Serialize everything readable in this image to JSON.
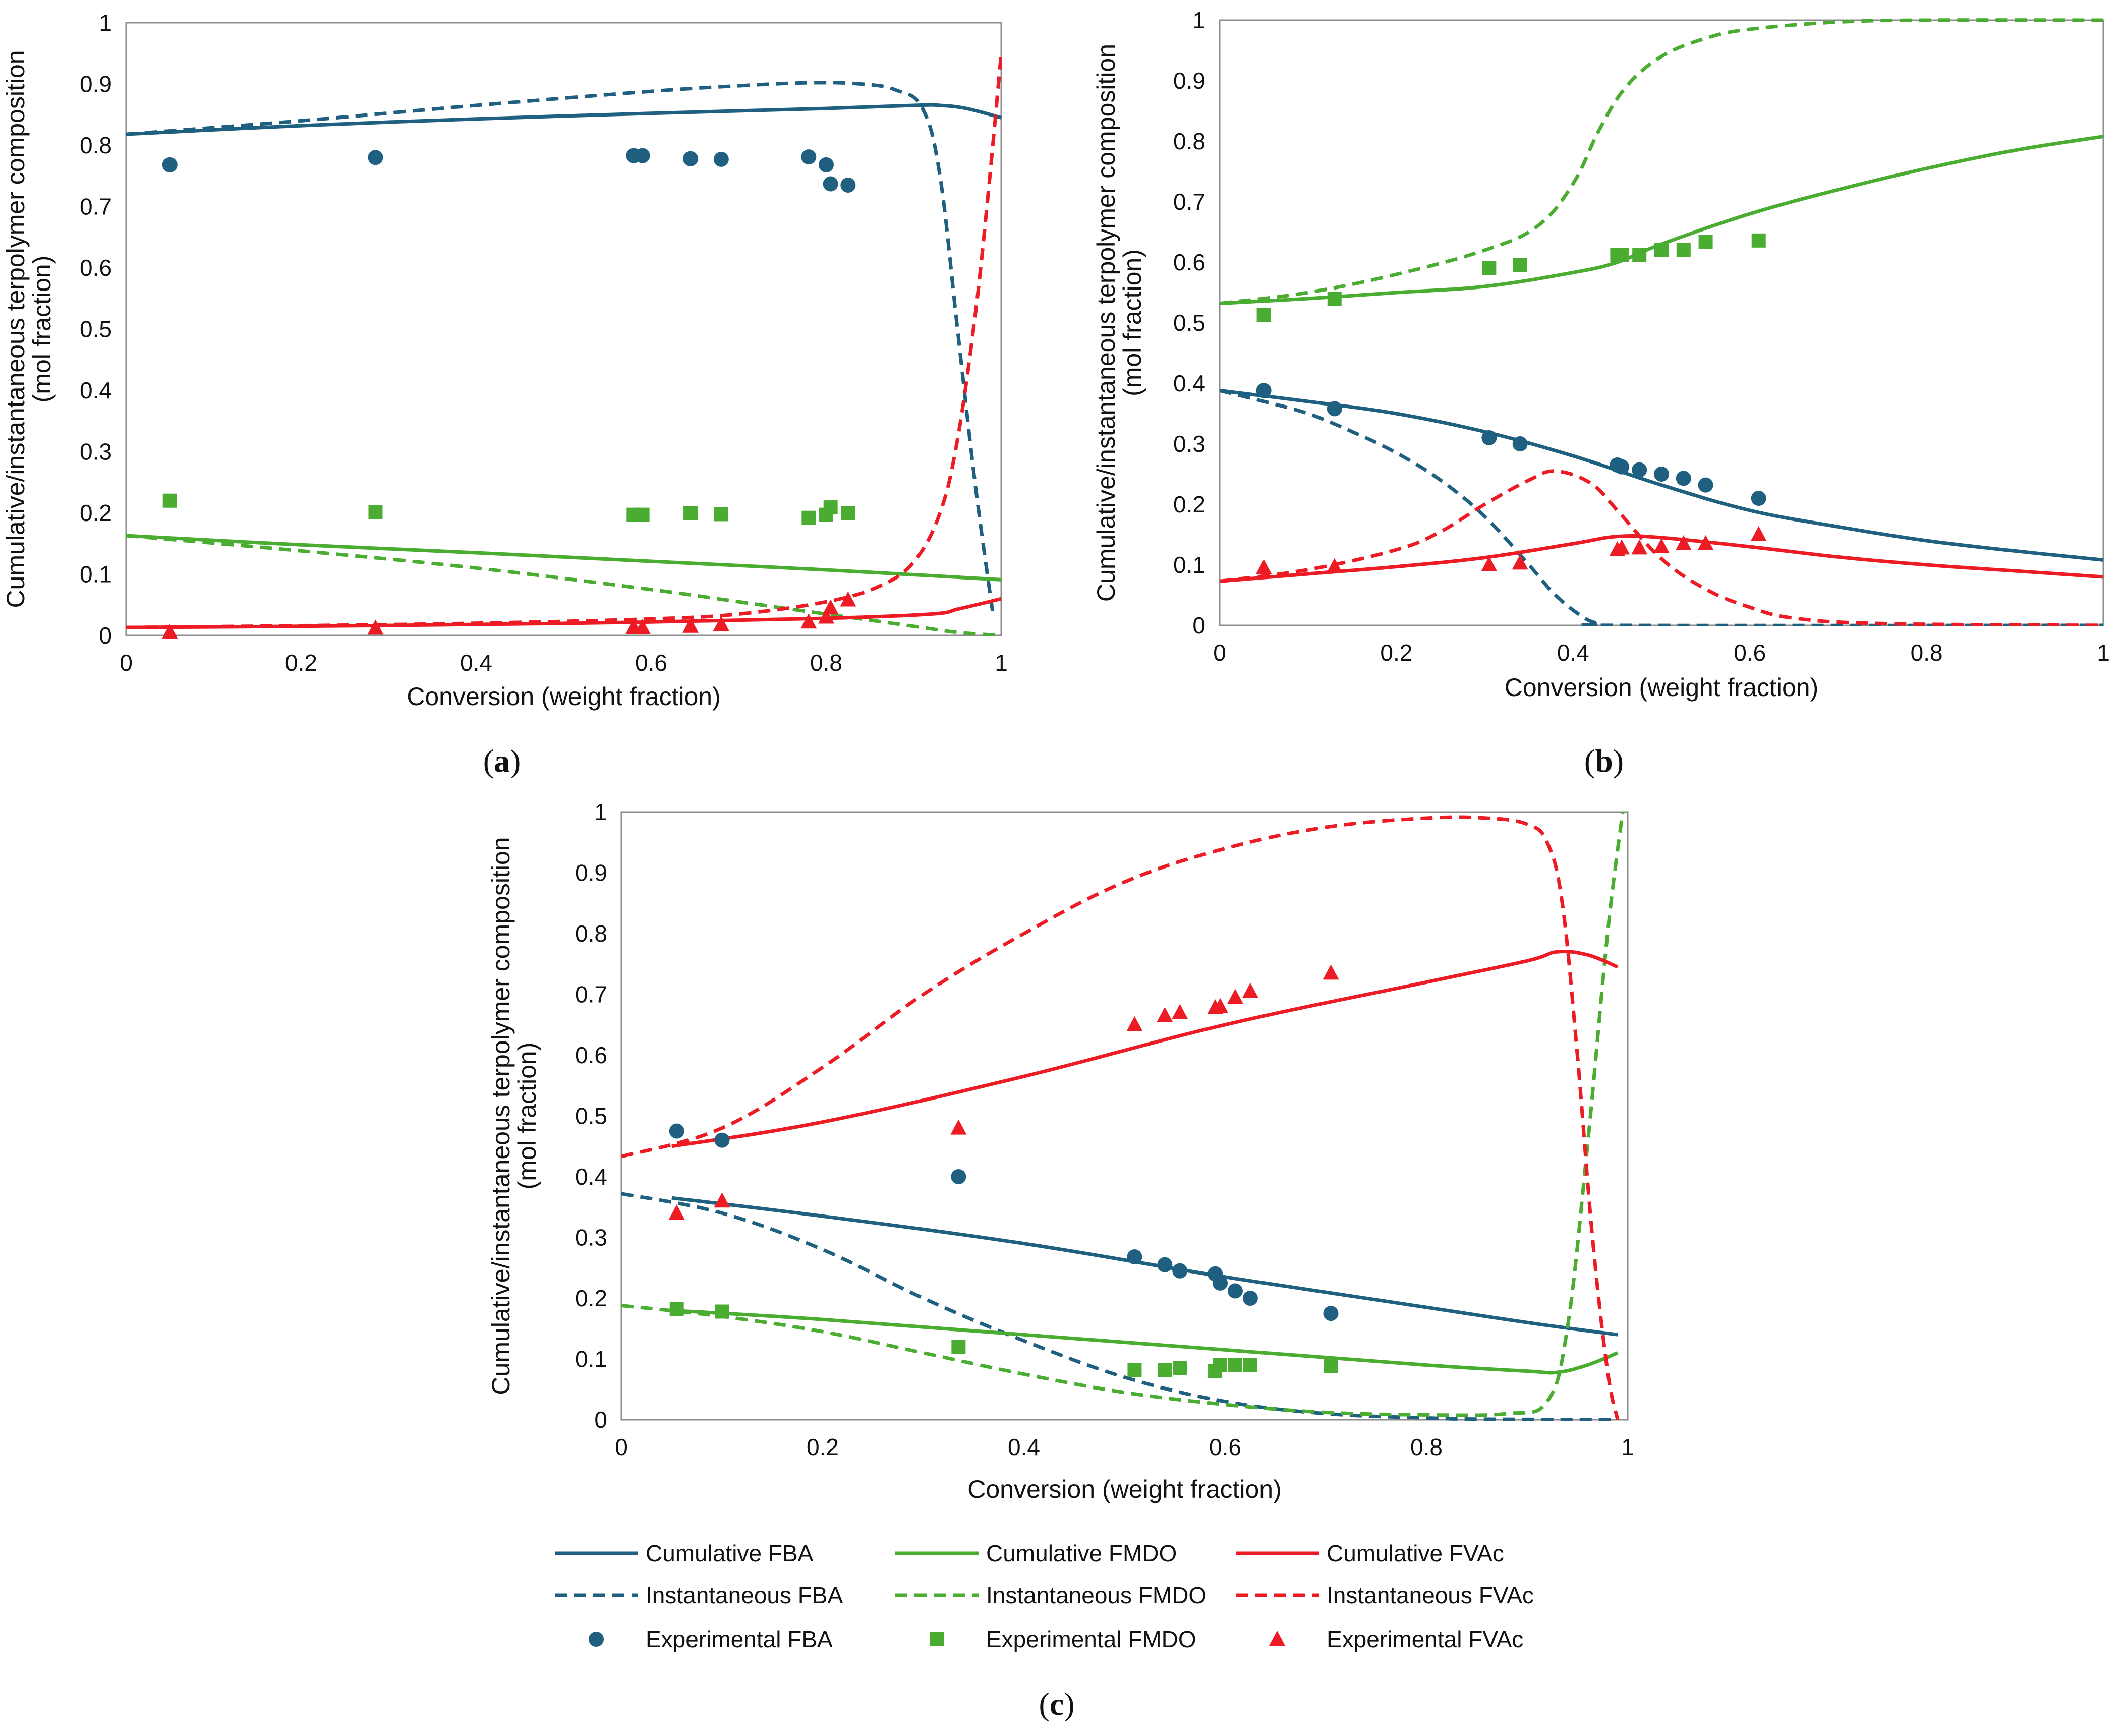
{
  "colors": {
    "FBA": "#1f5f7f",
    "FMDO": "#4aad32",
    "FVAc": "#ed1c24"
  },
  "legend": {
    "cum_fba": "Cumulative FBA",
    "cum_fmdo": "Cumulative FMDO",
    "cum_fvac": "Cumulative FVAc",
    "inst_fba": "Instantaneous FBA",
    "inst_fmdo": "Instantaneous FMDO",
    "inst_fvac": "Instantaneous FVAc",
    "exp_fba": "Experimental FBA",
    "exp_fmdo": "Experimental FMDO",
    "exp_fvac": "Experimental FVAc"
  },
  "chart_data": [
    {
      "id": "a",
      "label_open": "(",
      "label_letter": "a",
      "label_close": ")",
      "type": "line",
      "xlabel": "Conversion (weight fraction)",
      "ylabel_line1": "Cumulative/instantaneous terpolymer composition",
      "ylabel_line2": "(mol fraction)",
      "xlim": [
        0,
        1
      ],
      "ylim": [
        0,
        1
      ],
      "xticks": [
        0,
        0.2,
        0.4,
        0.6,
        0.8,
        1
      ],
      "xtick_labels": [
        "0",
        "0.2",
        "0.4",
        "0.6",
        "0.8",
        "1"
      ],
      "yticks": [
        0,
        0.1,
        0.2,
        0.3,
        0.4,
        0.5,
        0.6,
        0.7,
        0.8,
        0.9,
        1
      ],
      "ytick_labels": [
        "0",
        "0.1",
        "0.2",
        "0.3",
        "0.4",
        "0.5",
        "0.6",
        "0.7",
        "0.8",
        "0.9",
        "1"
      ],
      "series": [
        {
          "key": "cum_fba",
          "name": "Cumulative FBA",
          "component": "FBA",
          "style": "solid",
          "x": [
            0,
            0.2,
            0.4,
            0.6,
            0.8,
            0.9,
            0.93,
            0.96,
            1.0
          ],
          "y": [
            0.818,
            0.832,
            0.843,
            0.852,
            0.86,
            0.865,
            0.865,
            0.86,
            0.845
          ]
        },
        {
          "key": "inst_fba",
          "name": "Instantaneous FBA",
          "component": "FBA",
          "style": "dashed",
          "x": [
            0,
            0.2,
            0.4,
            0.6,
            0.7,
            0.78,
            0.84,
            0.88,
            0.91,
            0.93,
            0.95,
            0.97,
            0.99
          ],
          "y": [
            0.818,
            0.84,
            0.865,
            0.888,
            0.897,
            0.902,
            0.9,
            0.89,
            0.86,
            0.75,
            0.5,
            0.25,
            0.04
          ]
        },
        {
          "key": "cum_fmdo",
          "name": "Cumulative FMDO",
          "component": "FMDO",
          "style": "solid",
          "x": [
            0,
            0.2,
            0.4,
            0.6,
            0.8,
            1.0
          ],
          "y": [
            0.163,
            0.148,
            0.135,
            0.121,
            0.107,
            0.091
          ]
        },
        {
          "key": "inst_fmdo",
          "name": "Instantaneous FMDO",
          "component": "FMDO",
          "style": "dashed",
          "x": [
            0,
            0.2,
            0.4,
            0.6,
            0.7,
            0.8,
            0.9,
            0.95,
            1.0
          ],
          "y": [
            0.163,
            0.138,
            0.11,
            0.075,
            0.055,
            0.035,
            0.015,
            0.005,
            0
          ]
        },
        {
          "key": "cum_fvac",
          "name": "Cumulative FVAc",
          "component": "FVAc",
          "style": "solid",
          "x": [
            0,
            0.2,
            0.4,
            0.6,
            0.8,
            0.92,
            0.95,
            0.98,
            1.0
          ],
          "y": [
            0.013,
            0.015,
            0.018,
            0.022,
            0.028,
            0.035,
            0.043,
            0.053,
            0.06
          ]
        },
        {
          "key": "inst_fvac",
          "name": "Instantaneous FVAc",
          "component": "FVAc",
          "style": "dashed",
          "x": [
            0,
            0.2,
            0.4,
            0.6,
            0.7,
            0.8,
            0.86,
            0.9,
            0.93,
            0.95,
            0.97,
            0.985,
            1.0
          ],
          "y": [
            0.013,
            0.016,
            0.02,
            0.027,
            0.035,
            0.055,
            0.08,
            0.12,
            0.2,
            0.32,
            0.52,
            0.72,
            0.95
          ]
        }
      ],
      "scatter": [
        {
          "key": "exp_fba",
          "name": "Experimental FBA",
          "component": "FBA",
          "marker": "circle",
          "x": [
            0.05,
            0.285,
            0.58,
            0.59,
            0.645,
            0.68,
            0.78,
            0.8,
            0.805,
            0.825
          ],
          "y": [
            0.768,
            0.78,
            0.783,
            0.783,
            0.778,
            0.777,
            0.781,
            0.768,
            0.737,
            0.735
          ]
        },
        {
          "key": "exp_fmdo",
          "name": "Experimental FMDO",
          "component": "FMDO",
          "marker": "square",
          "x": [
            0.05,
            0.285,
            0.58,
            0.59,
            0.645,
            0.68,
            0.78,
            0.8,
            0.805,
            0.825
          ],
          "y": [
            0.22,
            0.201,
            0.197,
            0.197,
            0.2,
            0.198,
            0.192,
            0.197,
            0.209,
            0.2
          ]
        },
        {
          "key": "exp_fvac",
          "name": "Experimental FVAc",
          "component": "FVAc",
          "marker": "triangle",
          "x": [
            0.05,
            0.285,
            0.58,
            0.59,
            0.645,
            0.68,
            0.78,
            0.8,
            0.805,
            0.825
          ],
          "y": [
            0.005,
            0.012,
            0.013,
            0.013,
            0.015,
            0.018,
            0.022,
            0.03,
            0.045,
            0.058
          ]
        }
      ]
    },
    {
      "id": "b",
      "label_open": "(",
      "label_letter": "b",
      "label_close": ")",
      "type": "line",
      "xlabel": "Conversion (weight fraction)",
      "ylabel_line1": "Cumulative/instantaneous terpolymer composition",
      "ylabel_line2": "(mol fraction)",
      "xlim": [
        0,
        1
      ],
      "ylim": [
        0,
        1
      ],
      "xticks": [
        0,
        0.2,
        0.4,
        0.6,
        0.8,
        1
      ],
      "xtick_labels": [
        "0",
        "0.2",
        "0.4",
        "0.6",
        "0.8",
        "1"
      ],
      "yticks": [
        0,
        0.1,
        0.2,
        0.3,
        0.4,
        0.5,
        0.6,
        0.7,
        0.8,
        0.9,
        1
      ],
      "ytick_labels": [
        "0",
        "0.1",
        "0.2",
        "0.3",
        "0.4",
        "0.5",
        "0.6",
        "0.7",
        "0.8",
        "0.9",
        "1"
      ],
      "series": [
        {
          "key": "cum_fba",
          "name": "Cumulative FBA",
          "component": "FBA",
          "style": "solid",
          "x": [
            0,
            0.1,
            0.2,
            0.3,
            0.4,
            0.5,
            0.6,
            0.7,
            0.8,
            0.9,
            1.0
          ],
          "y": [
            0.388,
            0.37,
            0.35,
            0.32,
            0.28,
            0.232,
            0.19,
            0.163,
            0.14,
            0.123,
            0.108
          ]
        },
        {
          "key": "inst_fba",
          "name": "Instantaneous FBA",
          "component": "FBA",
          "style": "dashed",
          "x": [
            0,
            0.05,
            0.1,
            0.15,
            0.2,
            0.25,
            0.3,
            0.35,
            0.38,
            0.41,
            0.43,
            0.46,
            1.0
          ],
          "y": [
            0.388,
            0.37,
            0.35,
            0.32,
            0.285,
            0.24,
            0.18,
            0.1,
            0.05,
            0.015,
            0.003,
            0,
            0
          ]
        },
        {
          "key": "cum_fmdo",
          "name": "Cumulative FMDO",
          "component": "FMDO",
          "style": "solid",
          "x": [
            0,
            0.1,
            0.2,
            0.3,
            0.4,
            0.45,
            0.5,
            0.6,
            0.7,
            0.8,
            0.9,
            1.0
          ],
          "y": [
            0.532,
            0.54,
            0.55,
            0.56,
            0.583,
            0.6,
            0.63,
            0.68,
            0.72,
            0.755,
            0.785,
            0.808
          ]
        },
        {
          "key": "inst_fmdo",
          "name": "Instantaneous FMDO",
          "component": "FMDO",
          "style": "dashed",
          "x": [
            0,
            0.1,
            0.2,
            0.3,
            0.36,
            0.4,
            0.43,
            0.46,
            0.5,
            0.55,
            0.6,
            0.7,
            0.8,
            1.0
          ],
          "y": [
            0.532,
            0.55,
            0.58,
            0.62,
            0.66,
            0.73,
            0.82,
            0.89,
            0.94,
            0.97,
            0.985,
            0.997,
            1.0,
            1.0
          ]
        },
        {
          "key": "cum_fvac",
          "name": "Cumulative FVAc",
          "component": "FVAc",
          "style": "solid",
          "x": [
            0,
            0.1,
            0.2,
            0.3,
            0.4,
            0.45,
            0.5,
            0.6,
            0.7,
            0.8,
            0.9,
            1.0
          ],
          "y": [
            0.073,
            0.085,
            0.097,
            0.112,
            0.135,
            0.147,
            0.145,
            0.13,
            0.113,
            0.1,
            0.09,
            0.08
          ]
        },
        {
          "key": "inst_fvac",
          "name": "Instantaneous FVAc",
          "component": "FVAc",
          "style": "dashed",
          "x": [
            0,
            0.1,
            0.2,
            0.25,
            0.3,
            0.35,
            0.38,
            0.42,
            0.45,
            0.5,
            0.55,
            0.6,
            0.65,
            0.75,
            1.0
          ],
          "y": [
            0.073,
            0.092,
            0.125,
            0.155,
            0.2,
            0.24,
            0.255,
            0.235,
            0.19,
            0.11,
            0.06,
            0.03,
            0.012,
            0.003,
            0
          ]
        }
      ],
      "scatter": [
        {
          "key": "exp_fba",
          "name": "Experimental FBA",
          "component": "FBA",
          "marker": "circle",
          "x": [
            0.05,
            0.13,
            0.305,
            0.34,
            0.45,
            0.455,
            0.475,
            0.5,
            0.525,
            0.55,
            0.61
          ],
          "y": [
            0.388,
            0.358,
            0.31,
            0.3,
            0.265,
            0.262,
            0.257,
            0.25,
            0.243,
            0.232,
            0.21
          ]
        },
        {
          "key": "exp_fmdo",
          "name": "Experimental FMDO",
          "component": "FMDO",
          "marker": "square",
          "x": [
            0.05,
            0.13,
            0.305,
            0.34,
            0.45,
            0.455,
            0.475,
            0.5,
            0.525,
            0.55,
            0.61
          ],
          "y": [
            0.513,
            0.54,
            0.59,
            0.595,
            0.612,
            0.612,
            0.612,
            0.62,
            0.62,
            0.634,
            0.636
          ]
        },
        {
          "key": "exp_fvac",
          "name": "Experimental FVAc",
          "component": "FVAc",
          "marker": "triangle",
          "x": [
            0.05,
            0.13,
            0.305,
            0.34,
            0.45,
            0.455,
            0.475,
            0.5,
            0.525,
            0.55,
            0.61
          ],
          "y": [
            0.095,
            0.097,
            0.1,
            0.103,
            0.125,
            0.128,
            0.128,
            0.13,
            0.135,
            0.135,
            0.15
          ]
        }
      ]
    },
    {
      "id": "c",
      "label_open": "(",
      "label_letter": "c",
      "label_close": ")",
      "type": "line",
      "xlabel": "Conversion (weight fraction)",
      "ylabel_line1": "Cumulative/instantaneous terpolymer composition",
      "ylabel_line2": "(mol fraction)",
      "xlim": [
        0,
        1
      ],
      "ylim": [
        0,
        1
      ],
      "xticks": [
        0,
        0.2,
        0.4,
        0.6,
        0.8,
        1
      ],
      "xtick_labels": [
        "0",
        "0.2",
        "0.4",
        "0.6",
        "0.8",
        "1"
      ],
      "yticks": [
        0,
        0.1,
        0.2,
        0.3,
        0.4,
        0.5,
        0.6,
        0.7,
        0.8,
        0.9,
        1
      ],
      "ytick_labels": [
        "0",
        "0.1",
        "0.2",
        "0.3",
        "0.4",
        "0.5",
        "0.6",
        "0.7",
        "0.8",
        "0.9",
        "1"
      ],
      "series": [
        {
          "key": "cum_fba",
          "name": "Cumulative FBA",
          "component": "FBA",
          "style": "solid",
          "x": [
            0.05,
            0.2,
            0.4,
            0.6,
            0.8,
            0.9,
            0.99
          ],
          "y": [
            0.365,
            0.335,
            0.29,
            0.235,
            0.185,
            0.16,
            0.14
          ]
        },
        {
          "key": "inst_fba",
          "name": "Instantaneous FBA",
          "component": "FBA",
          "style": "dashed",
          "x": [
            0,
            0.1,
            0.2,
            0.3,
            0.4,
            0.5,
            0.6,
            0.7,
            0.8,
            0.85,
            0.99
          ],
          "y": [
            0.372,
            0.34,
            0.28,
            0.2,
            0.13,
            0.07,
            0.03,
            0.01,
            0.003,
            0.001,
            0
          ]
        },
        {
          "key": "cum_fmdo",
          "name": "Cumulative FMDO",
          "component": "FMDO",
          "style": "solid",
          "x": [
            0.05,
            0.2,
            0.4,
            0.6,
            0.8,
            0.9,
            0.93,
            0.96,
            0.99
          ],
          "y": [
            0.18,
            0.165,
            0.14,
            0.115,
            0.09,
            0.08,
            0.078,
            0.09,
            0.11
          ]
        },
        {
          "key": "inst_fmdo",
          "name": "Instantaneous FMDO",
          "component": "FMDO",
          "style": "dashed",
          "x": [
            0,
            0.1,
            0.2,
            0.3,
            0.4,
            0.5,
            0.6,
            0.7,
            0.8,
            0.88,
            0.92,
            0.94,
            0.96,
            0.98,
            0.995
          ],
          "y": [
            0.188,
            0.17,
            0.145,
            0.11,
            0.075,
            0.045,
            0.025,
            0.012,
            0.008,
            0.01,
            0.03,
            0.15,
            0.45,
            0.8,
            1.0
          ]
        },
        {
          "key": "cum_fvac",
          "name": "Cumulative FVAc",
          "component": "FVAc",
          "style": "solid",
          "x": [
            0.05,
            0.2,
            0.4,
            0.6,
            0.8,
            0.9,
            0.93,
            0.96,
            0.99
          ],
          "y": [
            0.45,
            0.49,
            0.565,
            0.65,
            0.72,
            0.755,
            0.77,
            0.765,
            0.745
          ]
        },
        {
          "key": "inst_fvac",
          "name": "Instantaneous FVAc",
          "component": "FVAc",
          "style": "dashed",
          "x": [
            0,
            0.1,
            0.2,
            0.3,
            0.4,
            0.5,
            0.6,
            0.7,
            0.8,
            0.86,
            0.9,
            0.92,
            0.935,
            0.95,
            0.965,
            0.98,
            0.99
          ],
          "y": [
            0.433,
            0.48,
            0.58,
            0.7,
            0.8,
            0.885,
            0.94,
            0.975,
            0.99,
            0.99,
            0.98,
            0.95,
            0.85,
            0.6,
            0.3,
            0.08,
            0
          ]
        }
      ],
      "scatter": [
        {
          "key": "exp_fba",
          "name": "Experimental FBA",
          "component": "FBA",
          "marker": "circle",
          "x": [
            0.055,
            0.1,
            0.335,
            0.51,
            0.54,
            0.555,
            0.59,
            0.595,
            0.61,
            0.625,
            0.705
          ],
          "y": [
            0.475,
            0.46,
            0.4,
            0.268,
            0.255,
            0.245,
            0.24,
            0.225,
            0.212,
            0.2,
            0.175
          ]
        },
        {
          "key": "exp_fmdo",
          "name": "Experimental FMDO",
          "component": "FMDO",
          "marker": "square",
          "x": [
            0.055,
            0.1,
            0.335,
            0.51,
            0.54,
            0.555,
            0.59,
            0.595,
            0.61,
            0.625,
            0.705
          ],
          "y": [
            0.182,
            0.178,
            0.12,
            0.082,
            0.082,
            0.085,
            0.08,
            0.09,
            0.09,
            0.09,
            0.088
          ]
        },
        {
          "key": "exp_fvac",
          "name": "Experimental FVAc",
          "component": "FVAc",
          "marker": "triangle",
          "x": [
            0.055,
            0.1,
            0.335,
            0.51,
            0.54,
            0.555,
            0.59,
            0.595,
            0.61,
            0.625,
            0.705
          ],
          "y": [
            0.34,
            0.36,
            0.48,
            0.65,
            0.665,
            0.67,
            0.678,
            0.68,
            0.695,
            0.705,
            0.735
          ]
        }
      ]
    }
  ]
}
